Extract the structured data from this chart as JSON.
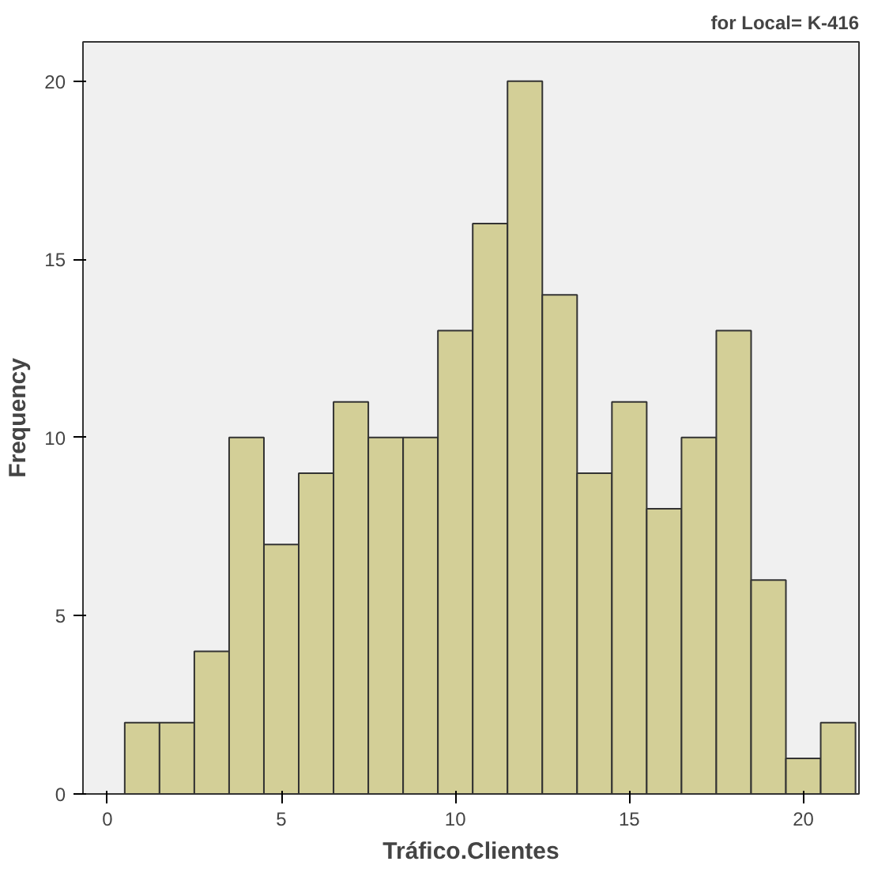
{
  "chart_data": {
    "type": "histogram",
    "title": "for Local= K-416",
    "xlabel": "Tráfico.Clientes",
    "ylabel": "Frequency",
    "bins": [
      0.5,
      1.5,
      2.5,
      3.5,
      4.5,
      5.5,
      6.5,
      7.5,
      8.5,
      9.5,
      10.5,
      11.5,
      12.5,
      13.5,
      14.5,
      15.5,
      16.5,
      17.5,
      18.5,
      19.5,
      20.5,
      21.5
    ],
    "values": [
      2,
      2,
      4,
      10,
      7,
      9,
      11,
      10,
      10,
      13,
      16,
      20,
      14,
      9,
      11,
      8,
      10,
      13,
      6,
      1,
      2
    ],
    "color": "#d3cf97",
    "xlim": [
      -0.7,
      21.6
    ],
    "ylim": [
      0,
      21.1
    ],
    "xticks": [
      0,
      5,
      10,
      15,
      20
    ],
    "yticks": [
      0,
      5,
      10,
      15,
      20
    ],
    "grid": false
  }
}
